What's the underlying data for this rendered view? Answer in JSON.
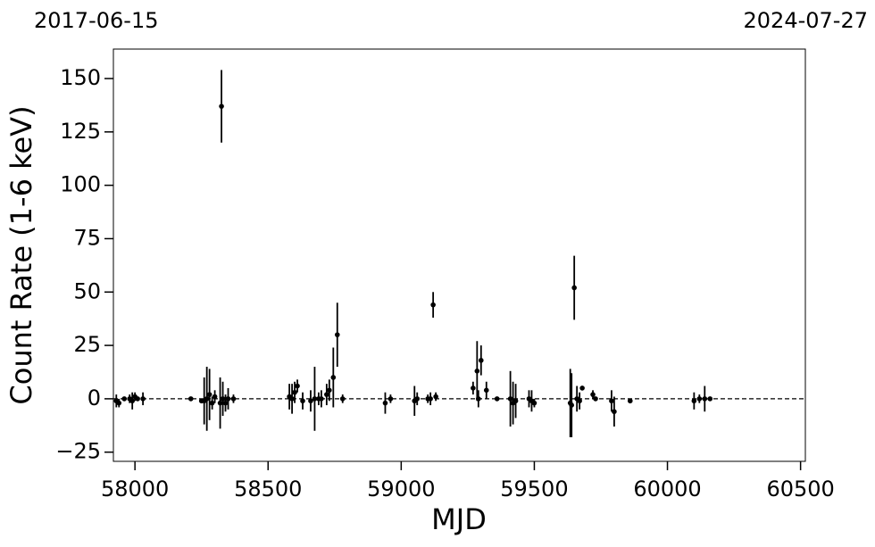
{
  "chart_data": {
    "type": "errorbar",
    "xlabel": "MJD",
    "ylabel": "Count Rate (1-6 keV)",
    "annotations": [
      "2017-06-15",
      "2024-07-27"
    ],
    "hline": 0,
    "color": "#000000",
    "xlim": [
      57919,
      60518
    ],
    "ylim": [
      -29.3,
      163.8
    ],
    "xticks": [
      58000,
      58500,
      59000,
      59500,
      60000,
      60500
    ],
    "yticks": [
      {
        "value": -25,
        "label": "−25"
      },
      0,
      25,
      50,
      75,
      100,
      125,
      150
    ],
    "x": [
      57930,
      57940,
      57960,
      57980,
      57990,
      58000,
      58010,
      58030,
      58210,
      58250,
      58260,
      58270,
      58280,
      58290,
      58300,
      58320,
      58325,
      58330,
      58340,
      58350,
      58370,
      58580,
      58590,
      58600,
      58610,
      58630,
      58660,
      58675,
      58690,
      58700,
      58720,
      58730,
      58745,
      58760,
      58780,
      58940,
      58960,
      59050,
      59060,
      59100,
      59110,
      59120,
      59130,
      59270,
      59285,
      59290,
      59300,
      59320,
      59360,
      59410,
      59420,
      59430,
      59480,
      59490,
      59500,
      59635,
      59640,
      59650,
      59660,
      59670,
      59680,
      59720,
      59730,
      59790,
      59800,
      59860,
      60100,
      60120,
      60140,
      60160
    ],
    "values": [
      -1,
      -2,
      0,
      0,
      -1,
      1,
      0,
      0,
      0,
      -1,
      -1,
      0,
      2,
      -2,
      1,
      -2,
      137,
      0,
      -2,
      0,
      0,
      1,
      0,
      3,
      6,
      -1,
      -1,
      0,
      0,
      0,
      2,
      4,
      10,
      30,
      0,
      -2,
      0,
      -1,
      0,
      0,
      0,
      44,
      1,
      5,
      13,
      0,
      18,
      4,
      0,
      0,
      -2,
      -1,
      0,
      -1,
      -2,
      -2,
      -3,
      52,
      0,
      -1,
      5,
      2,
      0,
      -1,
      -6,
      -1,
      -1,
      0,
      0,
      0
    ],
    "errors": [
      3,
      2,
      1,
      2,
      4,
      2,
      1,
      3,
      1,
      1,
      11,
      15,
      12,
      3,
      3,
      12,
      17,
      8,
      4,
      5,
      2,
      6,
      7,
      5,
      3,
      4,
      5,
      15,
      3,
      4,
      5,
      5,
      14,
      15,
      2,
      5,
      2,
      7,
      3,
      2,
      3,
      6,
      2,
      3,
      14,
      4,
      7,
      4,
      1,
      13,
      10,
      8,
      4,
      5,
      2,
      16,
      15,
      15,
      6,
      4,
      1,
      2,
      1,
      5,
      7,
      1,
      4,
      2,
      6,
      1
    ]
  }
}
